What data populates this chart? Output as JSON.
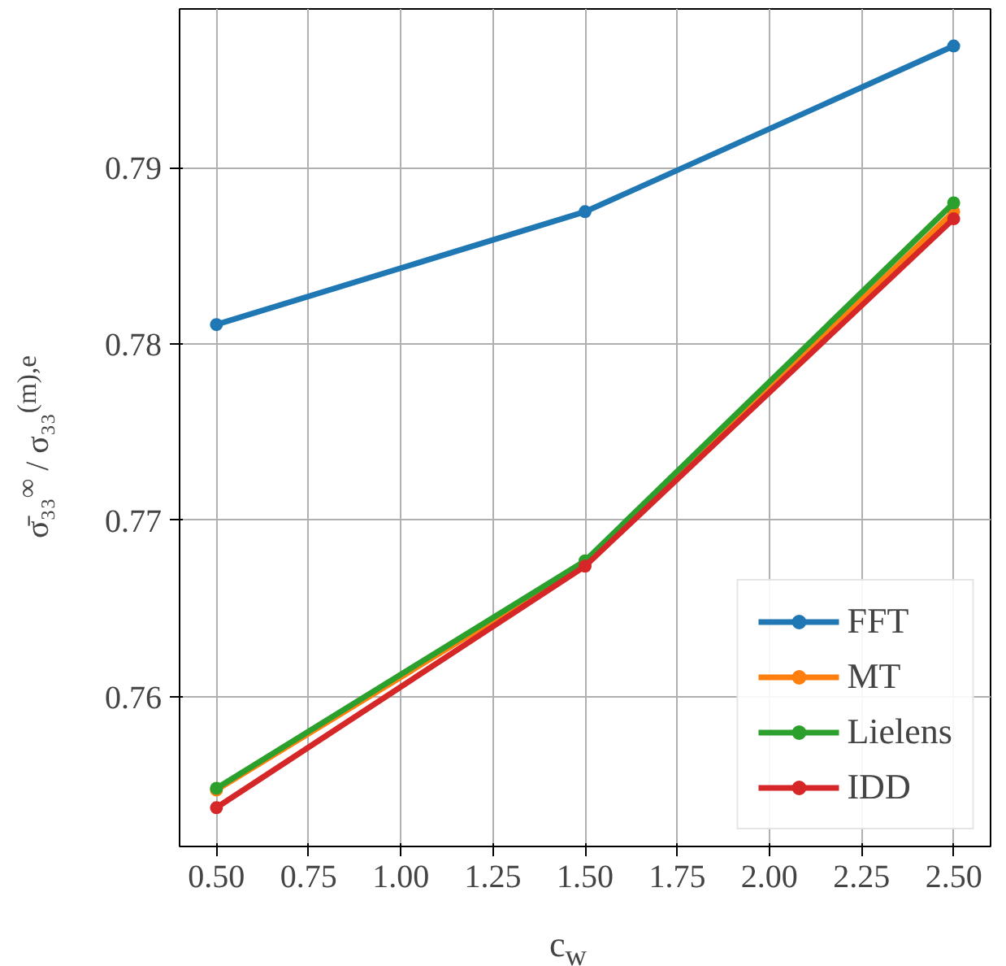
{
  "chart_data": {
    "type": "line",
    "xlabel": "c$_{w}$",
    "ylabel": "σ̄₃₃$^{∞}$ / σ₃₃$^{(m),e}$",
    "x": [
      0.5,
      1.5,
      2.5
    ],
    "series": [
      {
        "name": "FFT",
        "color": "#1f77b4",
        "values": [
          0.7811,
          0.7875,
          0.7969
        ]
      },
      {
        "name": "MT",
        "color": "#ff7f0e",
        "values": [
          0.7547,
          0.7675,
          0.7875
        ]
      },
      {
        "name": "Lielens",
        "color": "#2ca02c",
        "values": [
          0.7548,
          0.7677,
          0.788
        ]
      },
      {
        "name": "IDD",
        "color": "#d62728",
        "values": [
          0.7537,
          0.7674,
          0.7871
        ]
      }
    ],
    "xlim": [
      0.4,
      2.6
    ],
    "ylim": [
      0.7515,
      0.799
    ],
    "xticks": [
      {
        "value": 0.5,
        "label": "0.50"
      },
      {
        "value": 0.75,
        "label": "0.75"
      },
      {
        "value": 1.0,
        "label": "1.00"
      },
      {
        "value": 1.25,
        "label": "1.25"
      },
      {
        "value": 1.5,
        "label": "1.50"
      },
      {
        "value": 1.75,
        "label": "1.75"
      },
      {
        "value": 2.0,
        "label": "2.00"
      },
      {
        "value": 2.25,
        "label": "2.25"
      },
      {
        "value": 2.5,
        "label": "2.50"
      }
    ],
    "yticks": [
      {
        "value": 0.76,
        "label": "0.76"
      },
      {
        "value": 0.77,
        "label": "0.77"
      },
      {
        "value": 0.78,
        "label": "0.78"
      },
      {
        "value": 0.79,
        "label": "0.79"
      }
    ],
    "grid": true,
    "legend": "bottom right",
    "marker": "circle",
    "line_style": "solid"
  }
}
